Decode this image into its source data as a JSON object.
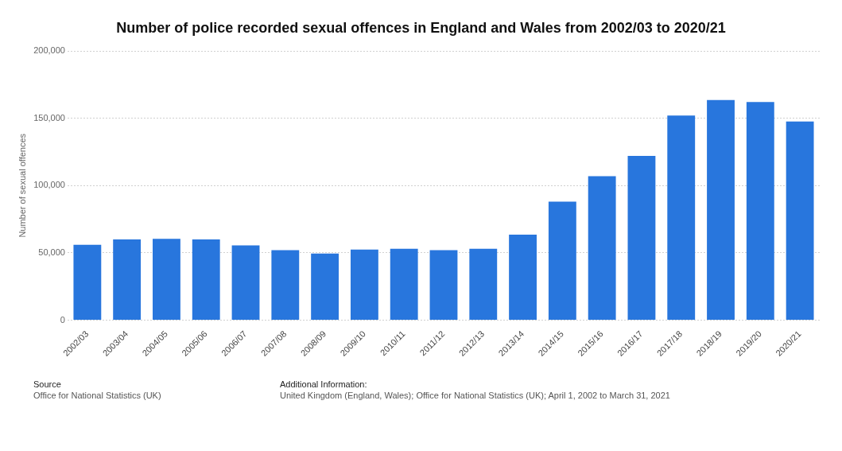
{
  "chart_data": {
    "type": "bar",
    "title": "Number of police recorded sexual offences in England and Wales from 2002/03 to 2020/21",
    "categories": [
      "2002/03",
      "2003/04",
      "2004/05",
      "2005/06",
      "2006/07",
      "2007/08",
      "2008/09",
      "2009/10",
      "2010/11",
      "2011/12",
      "2012/13",
      "2013/14",
      "2014/15",
      "2015/16",
      "2016/17",
      "2017/18",
      "2018/19",
      "2019/20",
      "2020/21"
    ],
    "values": [
      56000,
      60000,
      60500,
      60000,
      55500,
      52000,
      49500,
      52500,
      53000,
      52000,
      53000,
      63500,
      88000,
      107000,
      122000,
      152000,
      163500,
      162000,
      147500
    ],
    "color": "#2876dd",
    "ylabel": "Number of sexual offences",
    "ylim": [
      0,
      200000
    ],
    "yticks": [
      0,
      {
        "value": 50000,
        "label": "50,000"
      },
      {
        "value": 100000,
        "label": "100,000"
      },
      {
        "value": 150000,
        "label": "150,000"
      },
      {
        "value": 200000,
        "label": "200,000"
      }
    ],
    "grid": "y",
    "annotations": [
      "Source",
      "Office for National Statistics (UK)",
      "Additional Information:",
      "United Kingdom (England, Wales); Office for National Statistics (UK); April 1, 2002 to March 31, 2021"
    ]
  }
}
